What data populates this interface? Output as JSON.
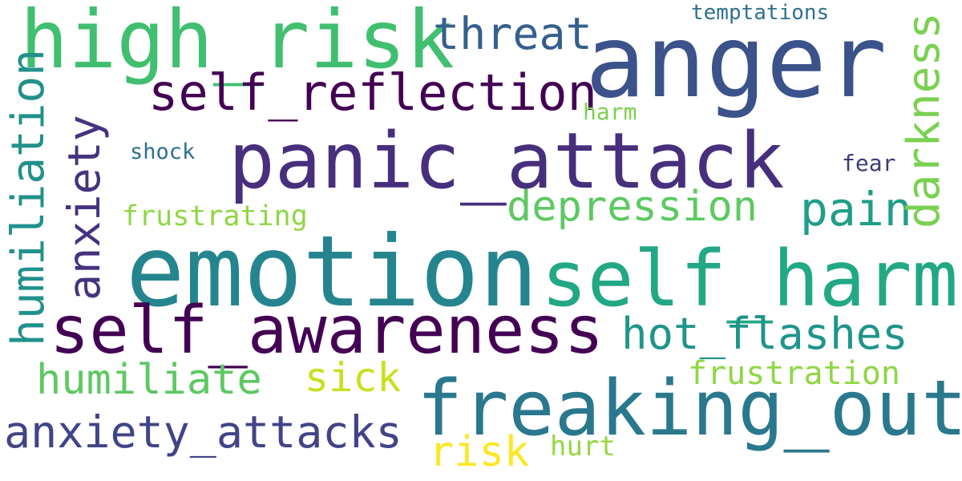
{
  "words": [
    {
      "text": "high_risk",
      "color": "#41bf70"
    },
    {
      "text": "anger",
      "color": "#3b528b"
    },
    {
      "text": "threat",
      "color": "#355f8d"
    },
    {
      "text": "temptations",
      "color": "#2d718e"
    },
    {
      "text": "self_reflection",
      "color": "#440154"
    },
    {
      "text": "harm",
      "color": "#7ad151"
    },
    {
      "text": "panic_attack",
      "color": "#472f7d"
    },
    {
      "text": "shock",
      "color": "#2d708e"
    },
    {
      "text": "fear",
      "color": "#3e3a7a"
    },
    {
      "text": "depression",
      "color": "#5ec962"
    },
    {
      "text": "pain",
      "color": "#1f9e89"
    },
    {
      "text": "frustrating",
      "color": "#8fd744"
    },
    {
      "text": "emotion",
      "color": "#25858e"
    },
    {
      "text": "self_harm",
      "color": "#22a884"
    },
    {
      "text": "self_awareness",
      "color": "#440154"
    },
    {
      "text": "hot_flashes",
      "color": "#1f958b"
    },
    {
      "text": "humiliate",
      "color": "#5ec962"
    },
    {
      "text": "sick",
      "color": "#c8e020"
    },
    {
      "text": "frustration",
      "color": "#8fd744"
    },
    {
      "text": "freaking_out",
      "color": "#2a788e"
    },
    {
      "text": "anxiety_attacks",
      "color": "#414487"
    },
    {
      "text": "risk",
      "color": "#fde725"
    },
    {
      "text": "hurt",
      "color": "#95d840"
    },
    {
      "text": "humiliation",
      "color": "#21918c"
    },
    {
      "text": "anxiety",
      "color": "#46337f"
    },
    {
      "text": "darkness",
      "color": "#7ad151"
    }
  ]
}
